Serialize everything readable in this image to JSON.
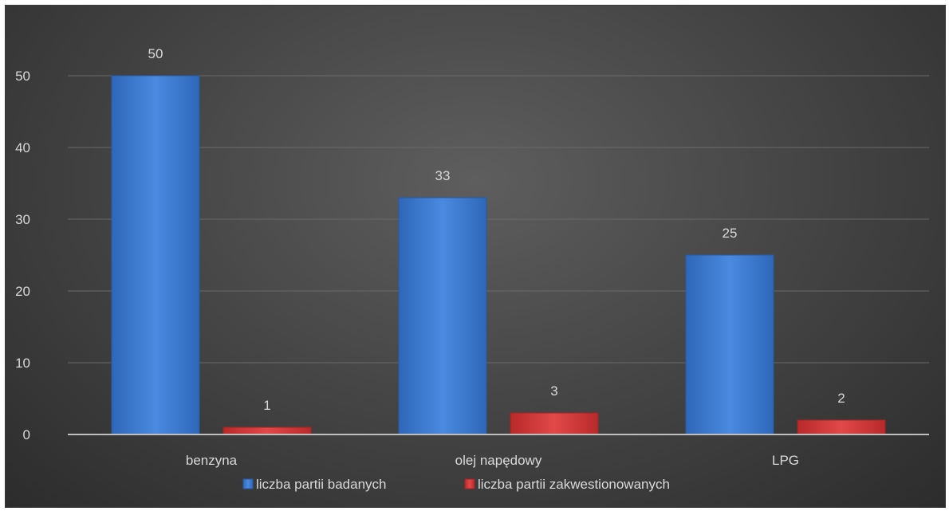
{
  "chart_data": {
    "type": "bar",
    "categories": [
      "benzyna",
      "olej napędowy",
      "LPG"
    ],
    "series": [
      {
        "name": "liczba partii badanych",
        "values": [
          50,
          33,
          25
        ],
        "color": "#3f7fd4"
      },
      {
        "name": "liczba partii zakwestionowanych",
        "values": [
          1,
          3,
          2
        ],
        "color": "#d83a3a"
      }
    ],
    "yticks": [
      0,
      10,
      20,
      30,
      40,
      50
    ],
    "ylim": [
      0,
      50
    ],
    "grid": true,
    "legend": "bottom",
    "data_labels": true,
    "background": "#474747",
    "text_color": "#d9d9d9"
  }
}
